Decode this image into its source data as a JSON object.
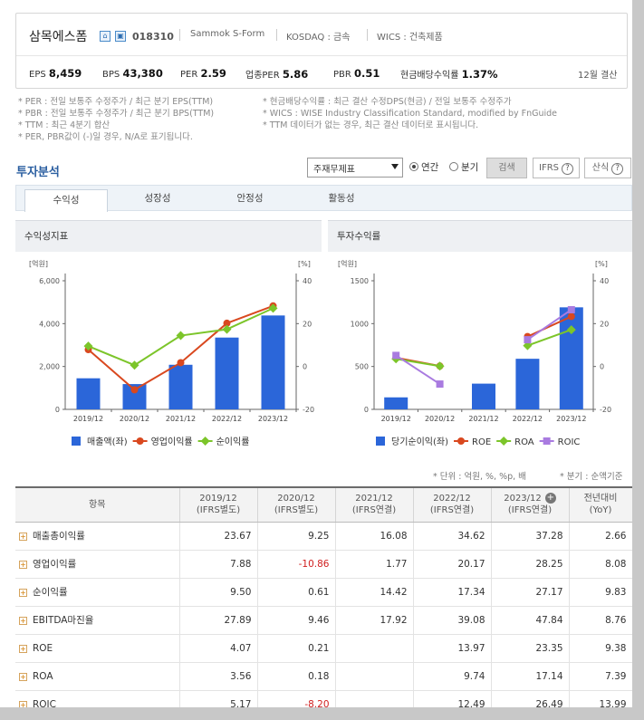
{
  "company": {
    "name": "삼목에스폼",
    "code": "018310",
    "eng_name": "Sammok S-Form",
    "market": "KOSDAQ : 금속",
    "wics": "WICS : 건축제품",
    "settle": "12월 결산"
  },
  "stats": [
    {
      "label": "EPS",
      "value": "8,459"
    },
    {
      "label": "BPS",
      "value": "43,380"
    },
    {
      "label": "PER",
      "value": "2.59"
    },
    {
      "label": "업종PER",
      "value": "5.86"
    },
    {
      "label": "PBR",
      "value": "0.51"
    },
    {
      "label": "현금배당수익률",
      "value": "1.37%"
    }
  ],
  "notes_left": [
    "* PER : 전일 보통주 수정주가 / 최근 분기 EPS(TTM)",
    "* PBR : 전일 보통주 수정주가 / 최근 분기 BPS(TTM)",
    "* TTM : 최근 4분기 합산",
    "* PER, PBR값이 (-)일 경우, N/A로 표기됩니다."
  ],
  "notes_right": [
    "* 현금배당수익률 : 최근 결산 수정DPS(현금) / 전일 보통주 수정주가",
    "* WICS : WISE Industry Classification Standard, modified by FnGuide",
    "* TTM 데이터가 없는 경우, 최근 결산 데이터로 표시됩니다."
  ],
  "section_title": "투자분석",
  "controls": {
    "select": "주재무제표",
    "radio_annual": "연간",
    "radio_quarter": "분기",
    "search": "검색",
    "ifrs": "IFRS",
    "formula": "산식"
  },
  "tabs": [
    "수익성",
    "성장성",
    "안정성",
    "활동성"
  ],
  "chart1": {
    "panel": "수익성지표",
    "left_unit": "[억원]",
    "right_unit": "[%]",
    "left_ticks": [
      "6,000",
      "4,000",
      "2,000",
      "0"
    ],
    "right_ticks": [
      "40",
      "20",
      "0",
      "-20"
    ],
    "legend": [
      "매출액(좌)",
      "영업이익률",
      "순이익률"
    ]
  },
  "chart2": {
    "panel": "투자수익률",
    "left_unit": "[억원]",
    "right_unit": "[%]",
    "left_ticks": [
      "1500",
      "1000",
      "500",
      "0"
    ],
    "right_ticks": [
      "40",
      "20",
      "0",
      "-20"
    ],
    "legend": [
      "당기순이익(좌)",
      "ROE",
      "ROA",
      "ROIC"
    ]
  },
  "chart_data": [
    {
      "type": "bar",
      "title": "수익성지표",
      "categories": [
        "2019/12",
        "2020/12",
        "2021/12",
        "2022/12",
        "2023/12"
      ],
      "ylim": [
        0,
        6000
      ],
      "y2lim": [
        -20,
        40
      ],
      "series": [
        {
          "name": "매출액(좌)",
          "axis": "left",
          "values": [
            1450,
            1180,
            2080,
            3350,
            4380
          ],
          "color": "#2b66d9"
        },
        {
          "name": "영업이익률",
          "axis": "right",
          "type": "line",
          "values": [
            7.88,
            -10.86,
            1.77,
            20.17,
            28.25
          ],
          "color": "#d9481f"
        },
        {
          "name": "순이익률",
          "axis": "right",
          "type": "line",
          "values": [
            9.5,
            0.61,
            14.42,
            17.34,
            27.17
          ],
          "color": "#7cc52a"
        }
      ]
    },
    {
      "type": "bar",
      "title": "투자수익률",
      "categories": [
        "2019/12",
        "2020/12",
        "2021/12",
        "2022/12",
        "2023/12"
      ],
      "ylim": [
        0,
        1500
      ],
      "y2lim": [
        -20,
        40
      ],
      "series": [
        {
          "name": "당기순이익(좌)",
          "axis": "left",
          "values": [
            140,
            null,
            300,
            590,
            1190
          ],
          "color": "#2b66d9"
        },
        {
          "name": "ROE",
          "axis": "right",
          "type": "line",
          "values": [
            4.07,
            0.21,
            null,
            13.97,
            23.35
          ],
          "color": "#d9481f"
        },
        {
          "name": "ROA",
          "axis": "right",
          "type": "line",
          "values": [
            3.56,
            0.18,
            null,
            9.74,
            17.14
          ],
          "color": "#7cc52a"
        },
        {
          "name": "ROIC",
          "axis": "right",
          "type": "line",
          "values": [
            5.17,
            -8.2,
            null,
            12.49,
            26.49
          ],
          "color": "#a97be0"
        }
      ]
    }
  ],
  "unit_note": "* 단위 : 억원, %, %p, 배",
  "unit_note2": "* 분기 : 순액기준",
  "table": {
    "headers": [
      {
        "l1": "항목",
        "l2": ""
      },
      {
        "l1": "2019/12",
        "l2": "(IFRS별도)"
      },
      {
        "l1": "2020/12",
        "l2": "(IFRS별도)"
      },
      {
        "l1": "2021/12",
        "l2": "(IFRS연결)"
      },
      {
        "l1": "2022/12",
        "l2": "(IFRS연결)"
      },
      {
        "l1": "2023/12",
        "l2": "(IFRS연결)"
      },
      {
        "l1": "전년대비",
        "l2": "(YoY)"
      }
    ],
    "rows": [
      {
        "label": "매출총이익률",
        "cells": [
          "23.67",
          "9.25",
          "16.08",
          "34.62",
          "37.28",
          "2.66"
        ]
      },
      {
        "label": "영업이익률",
        "cells": [
          "7.88",
          "-10.86",
          "1.77",
          "20.17",
          "28.25",
          "8.08"
        ]
      },
      {
        "label": "순이익률",
        "cells": [
          "9.50",
          "0.61",
          "14.42",
          "17.34",
          "27.17",
          "9.83"
        ]
      },
      {
        "label": "EBITDA마진율",
        "cells": [
          "27.89",
          "9.46",
          "17.92",
          "39.08",
          "47.84",
          "8.76"
        ]
      },
      {
        "label": "ROE",
        "cells": [
          "4.07",
          "0.21",
          "",
          "13.97",
          "23.35",
          "9.38"
        ]
      },
      {
        "label": "ROA",
        "cells": [
          "3.56",
          "0.18",
          "",
          "9.74",
          "17.14",
          "7.39"
        ]
      },
      {
        "label": "ROIC",
        "cells": [
          "5.17",
          "-8.20",
          "",
          "12.49",
          "26.49",
          "13.99"
        ]
      }
    ]
  }
}
